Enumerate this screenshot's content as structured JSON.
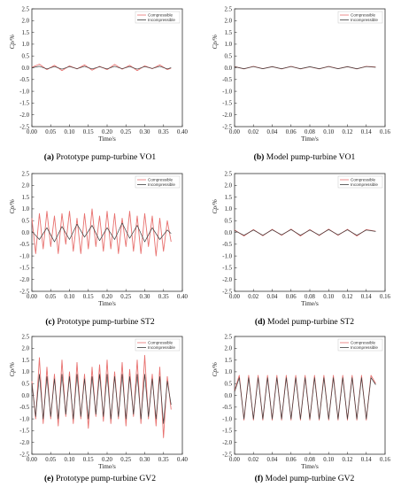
{
  "figure": {
    "panels": [
      {
        "caption": {
          "letter": "(a)",
          "text": " Prototype pump-turbine VO1"
        }
      },
      {
        "caption": {
          "letter": "(b)",
          "text": " Model pump-turbine VO1"
        }
      },
      {
        "caption": {
          "letter": "(c)",
          "text": " Prototype pump-turbine ST2"
        }
      },
      {
        "caption": {
          "letter": "(d)",
          "text": " Model pump-turbine ST2"
        }
      },
      {
        "caption": {
          "letter": "(e)",
          "text": " Prototype pump-turbine GV2"
        }
      },
      {
        "caption": {
          "letter": "(f)",
          "text": " Model pump-turbine GV2"
        }
      }
    ]
  },
  "colors": {
    "compressible": "#e8716f",
    "incompressible": "#3d3d3d",
    "axis": "#333333"
  },
  "chart_data": [
    {
      "type": "line",
      "xlabel": "Time/s",
      "ylabel": "Cp/%",
      "xlim": [
        0,
        0.4
      ],
      "ylim": [
        -2.5,
        2.5
      ],
      "xticks": [
        "0.00",
        "0.05",
        "0.10",
        "0.15",
        "0.20",
        "0.25",
        "0.30",
        "0.35",
        "0.40"
      ],
      "yticks": [
        "2.5",
        "2.0",
        "1.5",
        "1.0",
        "0.5",
        "0.0",
        "-0.5",
        "-1.0",
        "-1.5",
        "-2.0",
        "-2.5"
      ],
      "legend": "top-right",
      "series": [
        {
          "name": "Compressible",
          "x": [
            0,
            0.02,
            0.04,
            0.06,
            0.08,
            0.1,
            0.12,
            0.14,
            0.16,
            0.18,
            0.2,
            0.22,
            0.24,
            0.26,
            0.28,
            0.3,
            0.32,
            0.34,
            0.36,
            0.37
          ],
          "values": [
            0.02,
            0.15,
            -0.08,
            0.1,
            -0.12,
            0.08,
            -0.05,
            0.12,
            -0.1,
            0.06,
            -0.08,
            0.14,
            -0.06,
            0.1,
            -0.12,
            0.08,
            -0.04,
            0.12,
            -0.08,
            -0.02
          ]
        },
        {
          "name": "Incompressible",
          "x": [
            0,
            0.02,
            0.04,
            0.06,
            0.08,
            0.1,
            0.12,
            0.14,
            0.16,
            0.18,
            0.2,
            0.22,
            0.24,
            0.26,
            0.28,
            0.3,
            0.32,
            0.34,
            0.36,
            0.37
          ],
          "values": [
            0.0,
            0.06,
            -0.05,
            0.05,
            -0.06,
            0.05,
            -0.04,
            0.06,
            -0.05,
            0.04,
            -0.05,
            0.06,
            -0.04,
            0.05,
            -0.06,
            0.05,
            -0.03,
            0.06,
            -0.05,
            0.0
          ]
        }
      ]
    },
    {
      "type": "line",
      "xlabel": "Time/s",
      "ylabel": "Cp/%",
      "xlim": [
        0,
        0.16
      ],
      "ylim": [
        -2.5,
        2.5
      ],
      "xticks": [
        "0.00",
        "0.02",
        "0.04",
        "0.06",
        "0.08",
        "0.10",
        "0.12",
        "0.14",
        "0.16"
      ],
      "yticks": [
        "2.5",
        "2.0",
        "1.5",
        "1.0",
        "0.5",
        "0.0",
        "-0.5",
        "-1.0",
        "-1.5",
        "-2.0",
        "-2.5"
      ],
      "legend": "top-right",
      "series": [
        {
          "name": "Compressible",
          "x": [
            0,
            0.01,
            0.02,
            0.03,
            0.04,
            0.05,
            0.06,
            0.07,
            0.08,
            0.09,
            0.1,
            0.11,
            0.12,
            0.13,
            0.14,
            0.15
          ],
          "values": [
            0.05,
            -0.05,
            0.06,
            -0.04,
            0.05,
            -0.05,
            0.06,
            -0.05,
            0.04,
            -0.05,
            0.06,
            -0.04,
            0.05,
            -0.05,
            0.06,
            0.03
          ]
        },
        {
          "name": "Incompressible",
          "x": [
            0,
            0.01,
            0.02,
            0.03,
            0.04,
            0.05,
            0.06,
            0.07,
            0.08,
            0.09,
            0.1,
            0.11,
            0.12,
            0.13,
            0.14,
            0.15
          ],
          "values": [
            0.04,
            -0.04,
            0.05,
            -0.04,
            0.04,
            -0.04,
            0.05,
            -0.04,
            0.04,
            -0.04,
            0.05,
            -0.04,
            0.04,
            -0.04,
            0.05,
            0.02
          ]
        }
      ]
    },
    {
      "type": "line",
      "xlabel": "Time/s",
      "ylabel": "Cp/%",
      "xlim": [
        0,
        0.4
      ],
      "ylim": [
        -2.5,
        2.5
      ],
      "xticks": [
        "0.00",
        "0.05",
        "0.10",
        "0.15",
        "0.20",
        "0.25",
        "0.30",
        "0.35",
        "0.40"
      ],
      "yticks": [
        "2.5",
        "2.0",
        "1.5",
        "1.0",
        "0.5",
        "0.0",
        "-0.5",
        "-1.0",
        "-1.5",
        "-2.0",
        "-2.5"
      ],
      "legend": "top-right",
      "series": [
        {
          "name": "Compressible",
          "x": [
            0,
            0.01,
            0.02,
            0.03,
            0.04,
            0.05,
            0.06,
            0.07,
            0.08,
            0.09,
            0.1,
            0.11,
            0.12,
            0.13,
            0.14,
            0.15,
            0.16,
            0.17,
            0.18,
            0.19,
            0.2,
            0.21,
            0.22,
            0.23,
            0.24,
            0.25,
            0.26,
            0.27,
            0.28,
            0.29,
            0.3,
            0.31,
            0.32,
            0.33,
            0.34,
            0.35,
            0.36,
            0.37
          ],
          "values": [
            0.6,
            -0.9,
            0.8,
            -0.7,
            0.9,
            -0.6,
            0.7,
            -0.9,
            0.8,
            -0.5,
            0.9,
            -0.8,
            0.6,
            -0.9,
            0.8,
            -0.7,
            1.0,
            -0.6,
            0.7,
            -0.8,
            0.9,
            -0.7,
            0.8,
            -0.9,
            0.6,
            -0.6,
            0.9,
            -0.8,
            0.7,
            -0.9,
            0.8,
            -0.6,
            0.7,
            -1.0,
            0.6,
            -0.8,
            0.5,
            -0.4
          ]
        },
        {
          "name": "Incompressible",
          "x": [
            0,
            0.02,
            0.04,
            0.06,
            0.08,
            0.1,
            0.12,
            0.14,
            0.16,
            0.18,
            0.2,
            0.22,
            0.24,
            0.26,
            0.28,
            0.3,
            0.32,
            0.34,
            0.36,
            0.37
          ],
          "values": [
            0.05,
            -0.3,
            0.2,
            -0.4,
            0.25,
            -0.3,
            0.35,
            -0.2,
            0.3,
            -0.35,
            0.2,
            -0.3,
            0.4,
            -0.25,
            0.3,
            -0.4,
            0.2,
            -0.3,
            0.1,
            -0.05
          ]
        }
      ]
    },
    {
      "type": "line",
      "xlabel": "Time/s",
      "ylabel": "Cp/%",
      "xlim": [
        0,
        0.16
      ],
      "ylim": [
        -2.5,
        2.5
      ],
      "xticks": [
        "0.00",
        "0.02",
        "0.04",
        "0.06",
        "0.08",
        "0.10",
        "0.12",
        "0.14",
        "0.16"
      ],
      "yticks": [
        "2.5",
        "2.0",
        "1.5",
        "1.0",
        "0.5",
        "0.0",
        "-0.5",
        "-1.0",
        "-1.5",
        "-2.0",
        "-2.5"
      ],
      "legend": "top-right",
      "series": [
        {
          "name": "Compressible",
          "x": [
            0,
            0.01,
            0.02,
            0.03,
            0.04,
            0.05,
            0.06,
            0.07,
            0.08,
            0.09,
            0.1,
            0.11,
            0.12,
            0.13,
            0.14,
            0.15
          ],
          "values": [
            0.1,
            -0.15,
            0.12,
            -0.14,
            0.13,
            -0.12,
            0.14,
            -0.15,
            0.12,
            -0.13,
            0.14,
            -0.12,
            0.13,
            -0.15,
            0.12,
            0.05
          ]
        },
        {
          "name": "Incompressible",
          "x": [
            0,
            0.01,
            0.02,
            0.03,
            0.04,
            0.05,
            0.06,
            0.07,
            0.08,
            0.09,
            0.1,
            0.11,
            0.12,
            0.13,
            0.14,
            0.15
          ],
          "values": [
            0.08,
            -0.12,
            0.1,
            -0.12,
            0.11,
            -0.1,
            0.12,
            -0.12,
            0.1,
            -0.11,
            0.12,
            -0.1,
            0.11,
            -0.12,
            0.1,
            0.04
          ]
        }
      ]
    },
    {
      "type": "line",
      "xlabel": "Time/s",
      "ylabel": "Cp/%",
      "xlim": [
        0,
        0.4
      ],
      "ylim": [
        -2.5,
        2.5
      ],
      "xticks": [
        "0.00",
        "0.05",
        "0.10",
        "0.15",
        "0.20",
        "0.25",
        "0.30",
        "0.35",
        "0.40"
      ],
      "yticks": [
        "2.5",
        "2.0",
        "1.5",
        "1.0",
        "0.5",
        "0.0",
        "-0.5",
        "-1.0",
        "-1.5",
        "-2.0",
        "-2.5"
      ],
      "legend": "top-right",
      "series": [
        {
          "name": "Compressible",
          "x": [
            0,
            0.01,
            0.02,
            0.03,
            0.04,
            0.05,
            0.06,
            0.07,
            0.08,
            0.09,
            0.1,
            0.11,
            0.12,
            0.13,
            0.14,
            0.15,
            0.16,
            0.17,
            0.18,
            0.19,
            0.2,
            0.21,
            0.22,
            0.23,
            0.24,
            0.25,
            0.26,
            0.27,
            0.28,
            0.29,
            0.3,
            0.31,
            0.32,
            0.33,
            0.34,
            0.35,
            0.36,
            0.37
          ],
          "values": [
            0.6,
            -1.0,
            1.6,
            -1.2,
            1.2,
            -1.0,
            0.9,
            -1.3,
            1.5,
            -0.9,
            1.0,
            -1.2,
            1.4,
            -1.0,
            0.9,
            -1.4,
            1.2,
            -0.9,
            1.3,
            -1.1,
            1.5,
            -1.2,
            1.0,
            -1.0,
            1.4,
            -1.3,
            1.1,
            -0.9,
            1.5,
            -1.2,
            1.7,
            -1.0,
            0.9,
            -1.3,
            1.2,
            -1.8,
            0.8,
            -0.6
          ]
        },
        {
          "name": "Incompressible",
          "x": [
            0,
            0.01,
            0.02,
            0.03,
            0.04,
            0.05,
            0.06,
            0.07,
            0.08,
            0.09,
            0.1,
            0.11,
            0.12,
            0.13,
            0.14,
            0.15,
            0.16,
            0.17,
            0.18,
            0.19,
            0.2,
            0.21,
            0.22,
            0.23,
            0.24,
            0.25,
            0.26,
            0.27,
            0.28,
            0.29,
            0.3,
            0.31,
            0.32,
            0.33,
            0.34,
            0.35,
            0.36,
            0.37
          ],
          "values": [
            0.5,
            -0.9,
            0.9,
            -1.0,
            0.8,
            -0.9,
            0.7,
            -1.0,
            0.9,
            -0.8,
            0.8,
            -1.0,
            0.9,
            -0.9,
            0.7,
            -1.0,
            0.8,
            -0.8,
            0.9,
            -0.9,
            0.9,
            -1.0,
            0.8,
            -0.9,
            0.9,
            -1.0,
            0.8,
            -0.8,
            0.9,
            -1.0,
            0.9,
            -0.9,
            0.7,
            -1.0,
            0.8,
            -1.2,
            0.6,
            -0.4
          ]
        }
      ]
    },
    {
      "type": "line",
      "xlabel": "Time/s",
      "ylabel": "Cp/%",
      "xlim": [
        0,
        0.16
      ],
      "ylim": [
        -2.5,
        2.5
      ],
      "xticks": [
        "0.00",
        "0.02",
        "0.04",
        "0.06",
        "0.08",
        "0.10",
        "0.12",
        "0.14",
        "0.16"
      ],
      "yticks": [
        "2.5",
        "2.0",
        "1.5",
        "1.0",
        "0.5",
        "0.0",
        "-0.5",
        "-1.0",
        "-1.5",
        "-2.0",
        "-2.5"
      ],
      "legend": "top-right",
      "series": [
        {
          "name": "Compressible",
          "x": [
            0,
            0.005,
            0.01,
            0.015,
            0.02,
            0.025,
            0.03,
            0.035,
            0.04,
            0.045,
            0.05,
            0.055,
            0.06,
            0.065,
            0.07,
            0.075,
            0.08,
            0.085,
            0.09,
            0.095,
            0.1,
            0.105,
            0.11,
            0.115,
            0.12,
            0.125,
            0.13,
            0.135,
            0.14,
            0.145,
            0.15
          ],
          "values": [
            0.2,
            0.85,
            -1.05,
            0.85,
            -1.05,
            0.85,
            -1.05,
            0.85,
            -1.05,
            0.85,
            -1.05,
            0.85,
            -1.05,
            0.85,
            -1.05,
            0.85,
            -1.05,
            0.85,
            -1.05,
            0.85,
            -1.05,
            0.85,
            -1.05,
            0.85,
            -1.05,
            0.85,
            -1.05,
            0.85,
            -1.05,
            0.85,
            0.5
          ]
        },
        {
          "name": "Incompressible",
          "x": [
            0,
            0.005,
            0.01,
            0.015,
            0.02,
            0.025,
            0.03,
            0.035,
            0.04,
            0.045,
            0.05,
            0.055,
            0.06,
            0.065,
            0.07,
            0.075,
            0.08,
            0.085,
            0.09,
            0.095,
            0.1,
            0.105,
            0.11,
            0.115,
            0.12,
            0.125,
            0.13,
            0.135,
            0.14,
            0.145,
            0.15
          ],
          "values": [
            0.15,
            0.75,
            -1.0,
            0.75,
            -1.0,
            0.75,
            -1.0,
            0.75,
            -1.0,
            0.75,
            -1.0,
            0.75,
            -1.0,
            0.75,
            -1.0,
            0.75,
            -1.0,
            0.75,
            -1.0,
            0.75,
            -1.0,
            0.75,
            -1.0,
            0.75,
            -1.0,
            0.75,
            -1.0,
            0.75,
            -1.0,
            0.75,
            0.45
          ]
        }
      ]
    }
  ]
}
